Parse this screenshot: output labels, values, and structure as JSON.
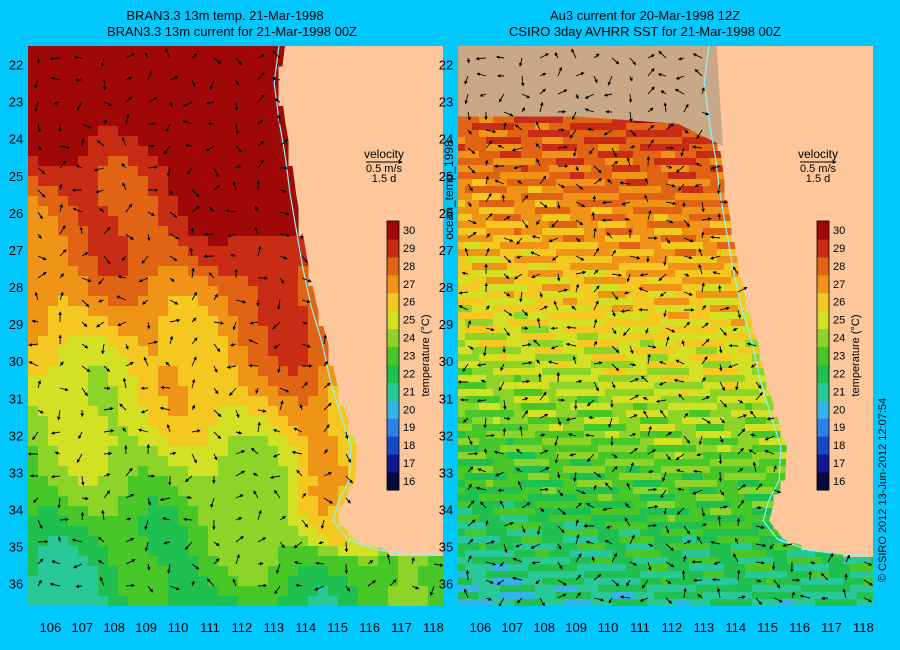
{
  "figure": {
    "background_color": "#00c8ff",
    "land_color": "#fdc79b",
    "masked_land_color": "#c9a888",
    "coast_line_color": "#8cf4ff",
    "side_label": "ocean_temp_1998",
    "credit": "© CSIRO 2012   13-Jun-2012 12:07:54"
  },
  "left_panel": {
    "title_line1": "BRAN3.3 13m temp. 21-Mar-1998",
    "title_line2": "BRAN3.3 13m current for 21-Mar-1998 00Z",
    "velocity_label": "velocity",
    "velocity_scale": "0.5 m/s",
    "velocity_days": "1.5 d"
  },
  "right_panel": {
    "title_line1": "Au3 current for 20-Mar-1998 12Z",
    "title_line2": "CSIRO 3day AVHRR SST for 21-Mar-1998 00Z",
    "velocity_label": "velocity",
    "velocity_scale": "0.5 m/s",
    "velocity_days": "1.5 d"
  },
  "map_extent": {
    "lon_min": 105.3,
    "lon_max": 118.3,
    "lat_min": -36.6,
    "lat_max": -21.5
  },
  "lat_ticks": [
    "22",
    "23",
    "24",
    "25",
    "26",
    "27",
    "28",
    "29",
    "30",
    "31",
    "32",
    "33",
    "34",
    "35",
    "36"
  ],
  "lon_ticks": [
    "106",
    "107",
    "108",
    "109",
    "110",
    "111",
    "112",
    "113",
    "114",
    "115",
    "116",
    "117",
    "118"
  ],
  "colorbar": {
    "title": "temperature (°C)",
    "min": 16,
    "max": 30,
    "ticks": [
      "16",
      "17",
      "18",
      "19",
      "20",
      "21",
      "22",
      "23",
      "24",
      "25",
      "26",
      "27",
      "28",
      "29",
      "30"
    ],
    "colors": [
      "#080840",
      "#101890",
      "#1848c8",
      "#2e80e4",
      "#34b4ea",
      "#28c898",
      "#20c050",
      "#48c828",
      "#8cd428",
      "#d4e024",
      "#f4c820",
      "#f09418",
      "#e06414",
      "#c82c14",
      "#a00808"
    ]
  }
}
